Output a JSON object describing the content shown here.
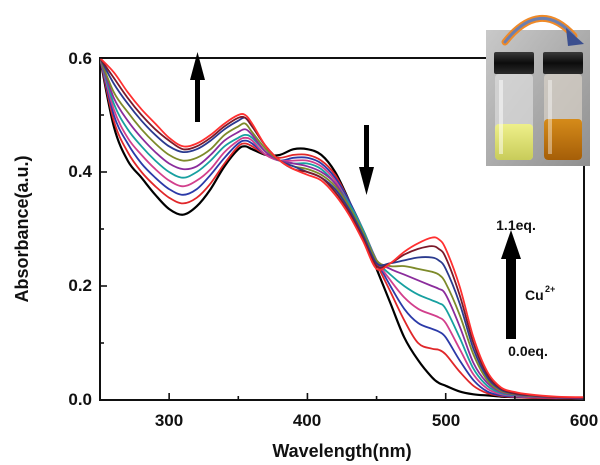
{
  "chart_data": {
    "type": "line",
    "xlabel": "Wavelength(nm)",
    "ylabel": "Absorbance(a.u.)",
    "xlim": [
      250,
      600
    ],
    "ylim": [
      0,
      0.6
    ],
    "xticks": [
      "300",
      "400",
      "500",
      "600"
    ],
    "yticks": [
      "0.0",
      "0.2",
      "0.4",
      "0.6"
    ],
    "grid": false,
    "legend": "none",
    "annotations": {
      "top_label": "1.1eq.",
      "bottom_label": "0.0eq.",
      "ion_label": "Cu",
      "ion_charge": "2+"
    },
    "x": [
      250,
      260,
      270,
      280,
      290,
      300,
      310,
      320,
      330,
      340,
      350,
      355,
      360,
      370,
      380,
      390,
      400,
      410,
      420,
      430,
      440,
      450,
      460,
      470,
      480,
      490,
      495,
      500,
      510,
      520,
      530,
      540,
      550,
      560,
      580,
      600
    ],
    "series": [
      {
        "color": "#000000",
        "values": [
          0.6,
          0.48,
          0.42,
          0.39,
          0.36,
          0.335,
          0.325,
          0.34,
          0.37,
          0.41,
          0.44,
          0.445,
          0.44,
          0.43,
          0.43,
          0.44,
          0.44,
          0.43,
          0.4,
          0.35,
          0.29,
          0.23,
          0.17,
          0.11,
          0.07,
          0.04,
          0.03,
          0.025,
          0.015,
          0.01,
          0.008,
          0.006,
          0.005,
          0.004,
          0.003,
          0.003
        ]
      },
      {
        "color": "#e0272a",
        "values": [
          0.6,
          0.49,
          0.435,
          0.4,
          0.375,
          0.355,
          0.345,
          0.355,
          0.38,
          0.415,
          0.445,
          0.45,
          0.445,
          0.43,
          0.425,
          0.43,
          0.43,
          0.42,
          0.395,
          0.35,
          0.3,
          0.24,
          0.19,
          0.14,
          0.1,
          0.09,
          0.088,
          0.08,
          0.05,
          0.025,
          0.012,
          0.007,
          0.005,
          0.004,
          0.003,
          0.003
        ]
      },
      {
        "color": "#2b3aa8",
        "values": [
          0.6,
          0.5,
          0.45,
          0.415,
          0.39,
          0.37,
          0.36,
          0.37,
          0.395,
          0.425,
          0.45,
          0.455,
          0.45,
          0.43,
          0.42,
          0.425,
          0.425,
          0.415,
          0.39,
          0.35,
          0.3,
          0.245,
          0.2,
          0.16,
          0.135,
          0.125,
          0.12,
          0.11,
          0.07,
          0.035,
          0.015,
          0.008,
          0.006,
          0.005,
          0.004,
          0.003
        ]
      },
      {
        "color": "#d23f8c",
        "values": [
          0.6,
          0.51,
          0.46,
          0.43,
          0.405,
          0.385,
          0.375,
          0.385,
          0.405,
          0.435,
          0.455,
          0.46,
          0.455,
          0.43,
          0.42,
          0.42,
          0.42,
          0.41,
          0.385,
          0.345,
          0.3,
          0.245,
          0.21,
          0.18,
          0.16,
          0.15,
          0.145,
          0.135,
          0.09,
          0.045,
          0.02,
          0.01,
          0.007,
          0.005,
          0.004,
          0.003
        ]
      },
      {
        "color": "#17a0a0",
        "values": [
          0.6,
          0.52,
          0.475,
          0.445,
          0.42,
          0.4,
          0.39,
          0.4,
          0.42,
          0.445,
          0.46,
          0.465,
          0.46,
          0.435,
          0.42,
          0.415,
          0.415,
          0.405,
          0.38,
          0.345,
          0.3,
          0.245,
          0.22,
          0.2,
          0.185,
          0.175,
          0.17,
          0.16,
          0.11,
          0.055,
          0.025,
          0.012,
          0.008,
          0.006,
          0.004,
          0.003
        ]
      },
      {
        "color": "#8b2c9c",
        "values": [
          0.6,
          0.53,
          0.49,
          0.46,
          0.435,
          0.415,
          0.405,
          0.41,
          0.43,
          0.455,
          0.47,
          0.475,
          0.465,
          0.435,
          0.42,
          0.415,
          0.41,
          0.4,
          0.38,
          0.34,
          0.295,
          0.245,
          0.23,
          0.22,
          0.21,
          0.2,
          0.195,
          0.185,
          0.13,
          0.065,
          0.03,
          0.014,
          0.009,
          0.006,
          0.004,
          0.003
        ]
      },
      {
        "color": "#7d8a2a",
        "values": [
          0.6,
          0.54,
          0.505,
          0.475,
          0.45,
          0.43,
          0.42,
          0.425,
          0.44,
          0.465,
          0.48,
          0.485,
          0.47,
          0.44,
          0.42,
          0.41,
          0.405,
          0.395,
          0.375,
          0.34,
          0.295,
          0.245,
          0.235,
          0.235,
          0.23,
          0.225,
          0.22,
          0.205,
          0.15,
          0.08,
          0.035,
          0.016,
          0.01,
          0.007,
          0.005,
          0.004
        ]
      },
      {
        "color": "#2a3a8e",
        "values": [
          0.6,
          0.555,
          0.52,
          0.49,
          0.465,
          0.445,
          0.435,
          0.44,
          0.455,
          0.475,
          0.49,
          0.495,
          0.48,
          0.445,
          0.42,
          0.41,
          0.4,
          0.39,
          0.37,
          0.335,
          0.29,
          0.24,
          0.24,
          0.245,
          0.25,
          0.25,
          0.245,
          0.23,
          0.17,
          0.09,
          0.04,
          0.018,
          0.011,
          0.008,
          0.005,
          0.004
        ]
      },
      {
        "color": "#7a1a2a",
        "values": [
          0.6,
          0.565,
          0.53,
          0.5,
          0.475,
          0.455,
          0.44,
          0.445,
          0.46,
          0.48,
          0.495,
          0.495,
          0.48,
          0.445,
          0.42,
          0.405,
          0.4,
          0.39,
          0.365,
          0.33,
          0.285,
          0.235,
          0.24,
          0.255,
          0.265,
          0.27,
          0.265,
          0.25,
          0.185,
          0.1,
          0.045,
          0.02,
          0.012,
          0.009,
          0.005,
          0.004
        ]
      },
      {
        "color": "#ff3030",
        "values": [
          0.6,
          0.575,
          0.54,
          0.51,
          0.485,
          0.46,
          0.445,
          0.45,
          0.465,
          0.485,
          0.5,
          0.5,
          0.485,
          0.445,
          0.42,
          0.405,
          0.395,
          0.385,
          0.36,
          0.325,
          0.28,
          0.23,
          0.24,
          0.26,
          0.275,
          0.285,
          0.282,
          0.265,
          0.2,
          0.11,
          0.05,
          0.022,
          0.014,
          0.01,
          0.006,
          0.005
        ]
      }
    ]
  }
}
